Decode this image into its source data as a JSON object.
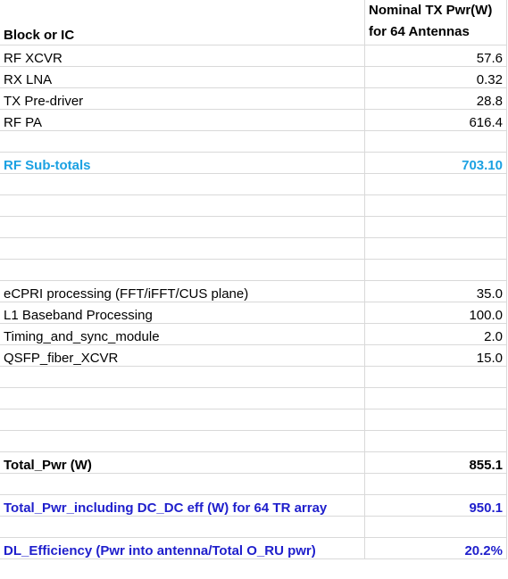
{
  "header": {
    "block_label": "Block or IC",
    "power_label_line1": "Nominal TX  Pwr(W)",
    "power_label_line2": "for 64 Antennas"
  },
  "rows": [
    {
      "block": "RF XCVR",
      "value": "57.6",
      "style": ""
    },
    {
      "block": "RX LNA",
      "value": "0.32",
      "style": ""
    },
    {
      "block": "TX Pre-driver",
      "value": "28.8",
      "style": ""
    },
    {
      "block": "RF PA",
      "value": "616.4",
      "style": ""
    },
    {
      "block": "",
      "value": "",
      "style": ""
    },
    {
      "block": "RF Sub-totals",
      "value": "703.10",
      "style": "cyan"
    },
    {
      "block": "",
      "value": "",
      "style": ""
    },
    {
      "block": "",
      "value": "",
      "style": ""
    },
    {
      "block": "",
      "value": "",
      "style": ""
    },
    {
      "block": "",
      "value": "",
      "style": ""
    },
    {
      "block": "",
      "value": "",
      "style": ""
    },
    {
      "block": "eCPRI processing (FFT/iFFT/CUS plane)",
      "value": "35.0",
      "style": ""
    },
    {
      "block": "L1 Baseband Processing",
      "value": "100.0",
      "style": ""
    },
    {
      "block": "Timing_and_sync_module",
      "value": "2.0",
      "style": ""
    },
    {
      "block": "QSFP_fiber_XCVR",
      "value": "15.0",
      "style": ""
    },
    {
      "block": "",
      "value": "",
      "style": ""
    },
    {
      "block": "",
      "value": "",
      "style": ""
    },
    {
      "block": "",
      "value": "",
      "style": ""
    },
    {
      "block": "",
      "value": "",
      "style": ""
    },
    {
      "block": "Total_Pwr (W)",
      "value": "855.1",
      "style": "bold"
    },
    {
      "block": "",
      "value": "",
      "style": ""
    },
    {
      "block": "Total_Pwr_including DC_DC eff (W) for 64 TR array",
      "value": "950.1",
      "style": "blue"
    },
    {
      "block": "",
      "value": "",
      "style": ""
    },
    {
      "block": "DL_Efficiency (Pwr into antenna/Total O_RU pwr)",
      "value": "20.2%",
      "style": "blue"
    }
  ],
  "colors": {
    "subtotal": "#1ba1e2",
    "highlight": "#1f1fcc",
    "gridline": "#d9d9d9"
  }
}
